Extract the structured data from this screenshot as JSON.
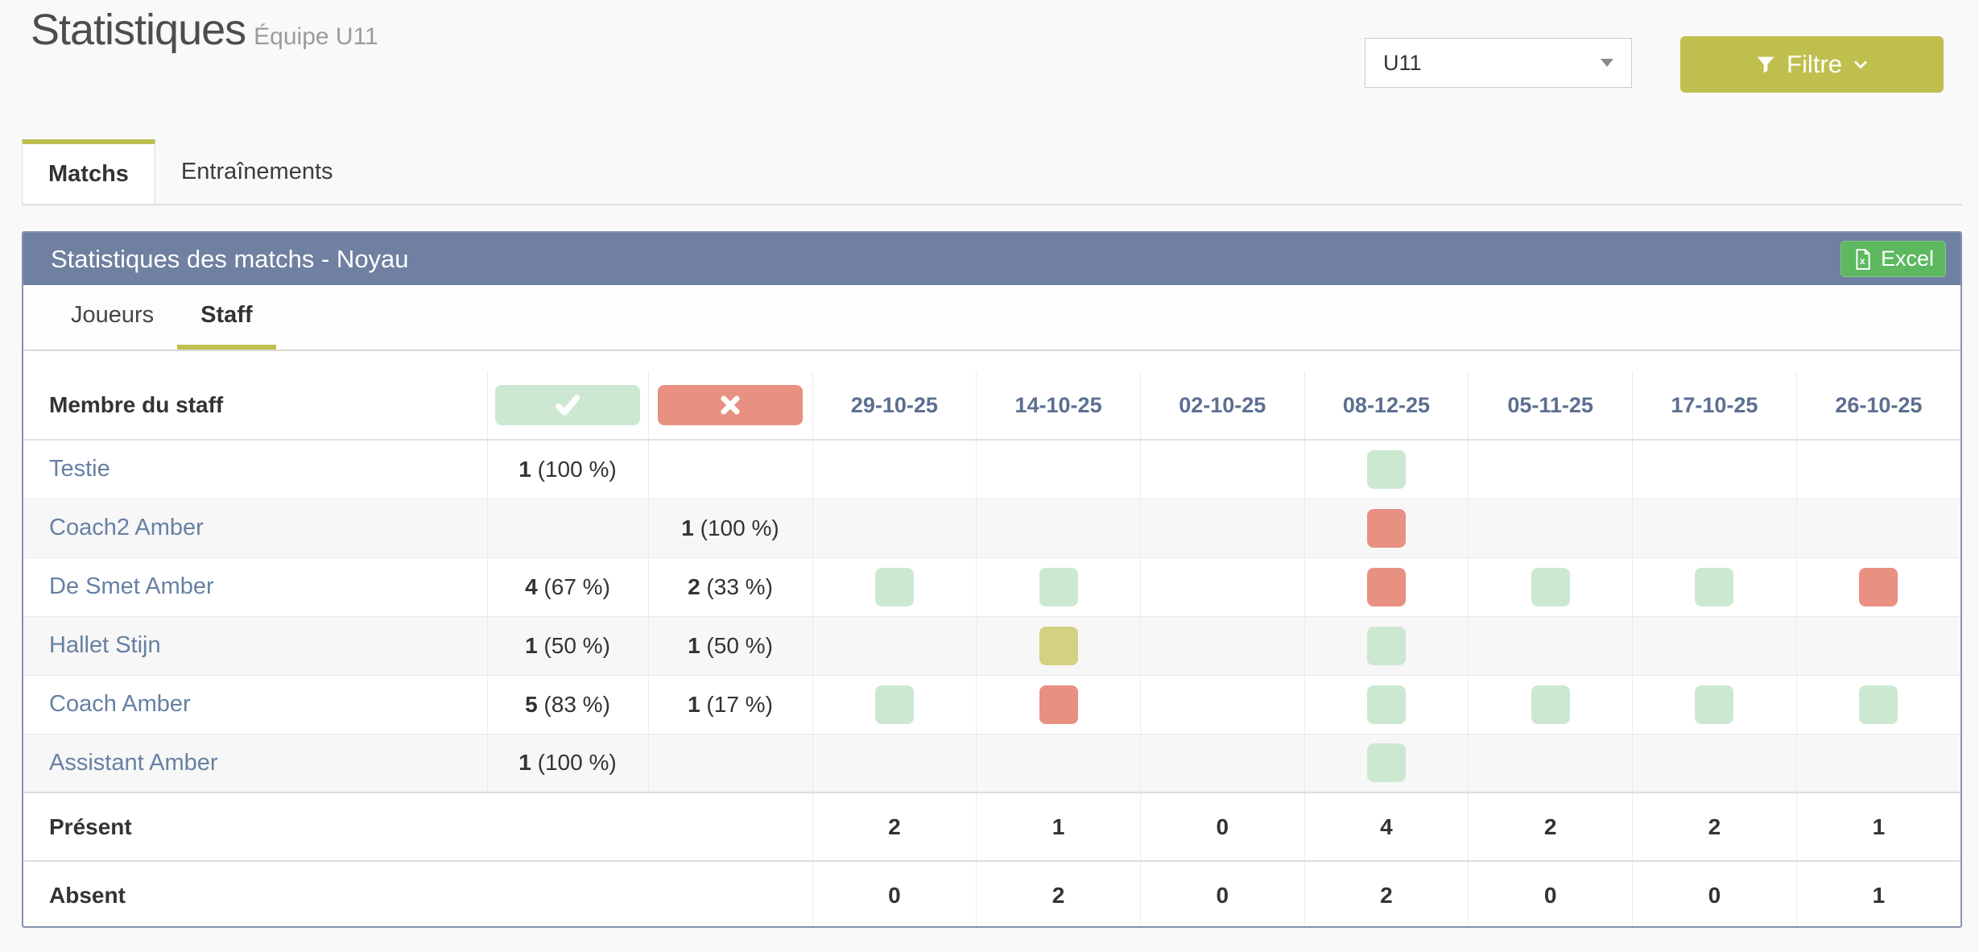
{
  "page": {
    "title": "Statistiques",
    "subtitle": "Équipe U11"
  },
  "toolbar": {
    "team_select_value": "U11",
    "filter_label": "Filtre"
  },
  "main_tabs": [
    {
      "label": "Matchs",
      "active": true
    },
    {
      "label": "Entraînements",
      "active": false
    }
  ],
  "panel": {
    "title": "Statistiques des matchs - Noyau",
    "excel_label": "Excel",
    "sub_tabs": [
      {
        "label": "Joueurs",
        "active": false
      },
      {
        "label": "Staff",
        "active": true
      }
    ]
  },
  "table": {
    "first_col_header": "Membre du staff",
    "date_headers": [
      "29-10-25",
      "14-10-25",
      "02-10-25",
      "08-12-25",
      "05-11-25",
      "17-10-25",
      "26-10-25"
    ],
    "rows": [
      {
        "name": "Testie",
        "present_count": "1",
        "present_pct": "(100 %)",
        "absent_count": "",
        "absent_pct": "",
        "cells": [
          null,
          null,
          null,
          "present",
          null,
          null,
          null
        ]
      },
      {
        "name": "Coach2 Amber",
        "present_count": "",
        "present_pct": "",
        "absent_count": "1",
        "absent_pct": "(100 %)",
        "cells": [
          null,
          null,
          null,
          "absent",
          null,
          null,
          null
        ]
      },
      {
        "name": "De Smet Amber",
        "present_count": "4",
        "present_pct": "(67 %)",
        "absent_count": "2",
        "absent_pct": "(33 %)",
        "cells": [
          "present",
          "present",
          null,
          "absent",
          "present",
          "present",
          "absent"
        ]
      },
      {
        "name": "Hallet Stijn",
        "present_count": "1",
        "present_pct": "(50 %)",
        "absent_count": "1",
        "absent_pct": "(50 %)",
        "cells": [
          null,
          "other",
          null,
          "present",
          null,
          null,
          null
        ]
      },
      {
        "name": "Coach Amber",
        "present_count": "5",
        "present_pct": "(83 %)",
        "absent_count": "1",
        "absent_pct": "(17 %)",
        "cells": [
          "present",
          "absent",
          null,
          "present",
          "present",
          "present",
          "present"
        ]
      },
      {
        "name": "Assistant Amber",
        "present_count": "1",
        "present_pct": "(100 %)",
        "absent_count": "",
        "absent_pct": "",
        "cells": [
          null,
          null,
          null,
          "present",
          null,
          null,
          null
        ]
      }
    ],
    "present_row": {
      "label": "Présent",
      "values": [
        2,
        1,
        0,
        4,
        2,
        2,
        1
      ]
    },
    "absent_row": {
      "label": "Absent",
      "values": [
        0,
        2,
        0,
        2,
        0,
        0,
        1
      ]
    }
  },
  "icons": {
    "filter": "funnel-icon",
    "filter_chevron": "chevron-down-icon",
    "team_select_caret": "caret-down-icon",
    "excel": "excel-file-icon",
    "present_header": "check-icon",
    "absent_header": "x-icon"
  },
  "colors": {
    "accent": "#bfbf4e",
    "panel_header": "#6f80a0",
    "panel_border": "#8494ae",
    "excel_green": "#5db85f",
    "present": "#cde8d1",
    "absent": "#e89082",
    "other": "#d5d183",
    "link_text": "#6780a3",
    "date_header_text": "#5c6f90"
  }
}
